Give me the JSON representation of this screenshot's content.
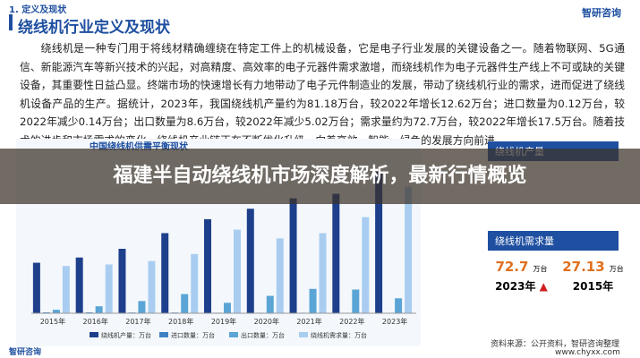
{
  "header": {
    "section": "1. 定义及现状",
    "title": "绕线机行业定义及现状",
    "logo": "智研咨询"
  },
  "paragraph": "绕线机是一种专门用于将线材精确缠绕在特定工件上的机械设备，它是电子行业发展的关键设备之一。随着物联网、5G通信、新能源汽车等新兴技术的兴起，对高精度、高效率的电子元器件需求激增，而绕线机作为电子元器件生产线上不可或缺的关键设备，其重要性日益凸显。终端市场的快速增长有力地带动了电子元件制造业的发展，带动了绕线机行业的需求，进而促进了绕线机设备产品的生产。据统计，2023年，我国绕线机产量约为81.18万台，较2022年增长12.62万台；进口数量为0.12万台，较2022年减少0.14万台；出口数量为8.6万台，较2022年减少5.02万台；需求量约为72.7万台，较2022年增长17.5万台。随着技术的进步和市场需求的变化，绕线机产业链正在不断优化升级，向着高效、智能、绿色的发展方向前进。",
  "banner": "福建半自动绕线机市场深度解析，最新行情概览",
  "chart_data": {
    "type": "bar",
    "title": "中国绕线机供需平衡现状",
    "categories": [
      "2015年",
      "2016年",
      "2017年",
      "2018年",
      "2019年",
      "2020年",
      "2021年",
      "2022年",
      "2023年"
    ],
    "series": [
      {
        "name": "绕线机产量：万台",
        "color": "#1e3f8c",
        "values": [
          29,
          32,
          37,
          46,
          54,
          60,
          66,
          68.56,
          81.18
        ]
      },
      {
        "name": "进口数量：万台",
        "color": "#3f7fc4",
        "values": [
          0.5,
          0.5,
          0.4,
          0.4,
          0.3,
          0.3,
          0.3,
          0.26,
          0.12
        ]
      },
      {
        "name": "出口数量：万台",
        "color": "#5aa5d6",
        "values": [
          2,
          4,
          7,
          11,
          6,
          10,
          14,
          13.62,
          8.6
        ]
      },
      {
        "name": "绕线机需求量：万台",
        "color": "#a9cdf0",
        "values": [
          27.13,
          28,
          30,
          34,
          48,
          43,
          46,
          55.2,
          72.7
        ]
      }
    ]
  },
  "panels": [
    {
      "title": "绕线机产量"
    },
    {
      "title": "绕线机需求量",
      "items": [
        {
          "value": "72.7",
          "unit": "万台",
          "year": "2023年"
        },
        {
          "value": "27.13",
          "unit": "万台",
          "year": "2015年"
        }
      ]
    }
  ],
  "footer": {
    "left": "智研咨询",
    "source": "资料来源：公开资料，智研咨询整理",
    "site": "www.chyxx.com"
  }
}
